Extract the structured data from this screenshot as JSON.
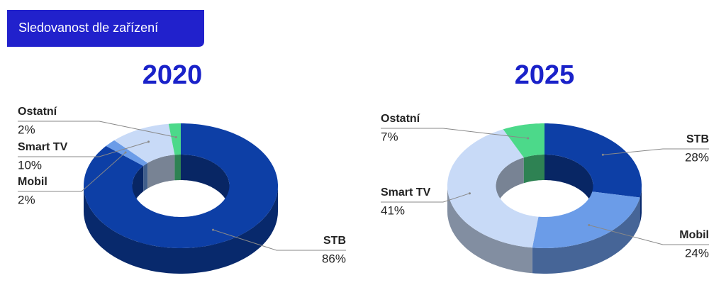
{
  "header": {
    "title": "Sledovanost dle zařízení"
  },
  "chart_data": [
    {
      "type": "pie",
      "title": "2020",
      "categories": [
        "STB",
        "Mobil",
        "Smart TV",
        "Ostatní"
      ],
      "values": [
        86,
        2,
        10,
        2
      ],
      "value_labels": [
        "86%",
        "2%",
        "10%",
        "2%"
      ],
      "colors": [
        "#0d3fa6",
        "#6b9ce8",
        "#c8daf7",
        "#4cd98a"
      ]
    },
    {
      "type": "pie",
      "title": "2025",
      "categories": [
        "STB",
        "Mobil",
        "Smart TV",
        "Ostatní"
      ],
      "values": [
        28,
        24,
        41,
        7
      ],
      "value_labels": [
        "28%",
        "24%",
        "41%",
        "7%"
      ],
      "colors": [
        "#0d3fa6",
        "#6b9ce8",
        "#c8daf7",
        "#4cd98a"
      ]
    }
  ]
}
